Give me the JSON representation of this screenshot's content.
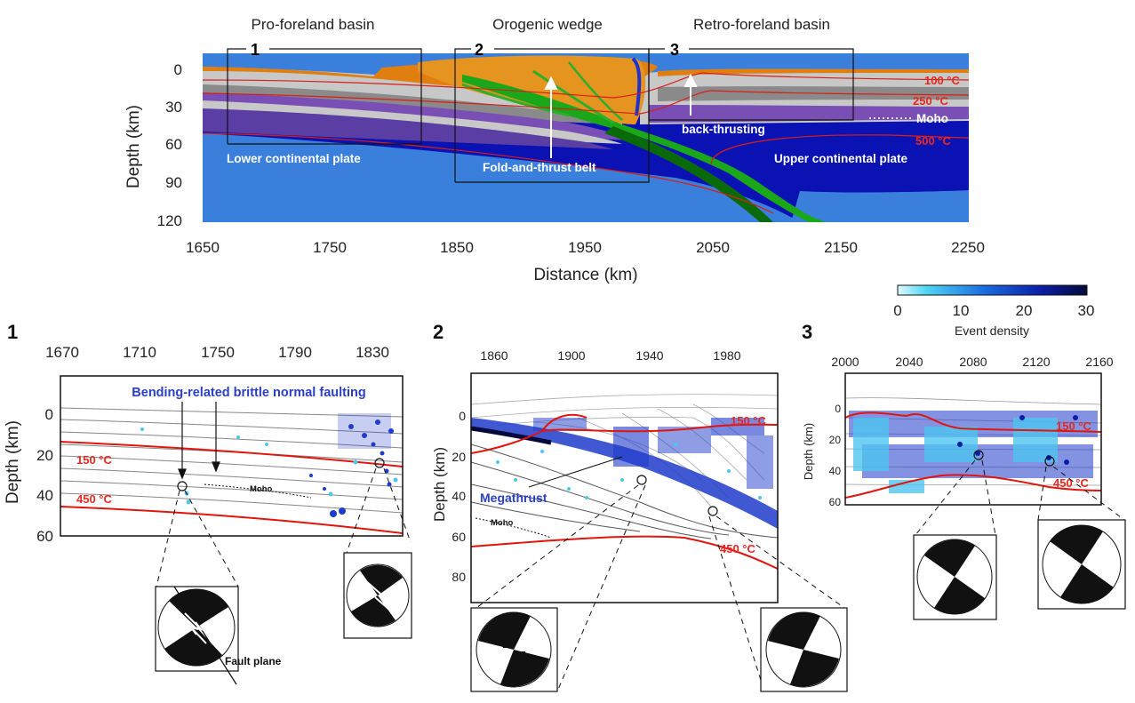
{
  "top": {
    "regions": [
      "Pro-foreland basin",
      "Orogenic wedge",
      "Retro-foreland basin"
    ],
    "box_numbers": [
      "1",
      "2",
      "3"
    ],
    "x_ticks": [
      "1650",
      "1750",
      "1850",
      "1950",
      "2050",
      "2150",
      "2250"
    ],
    "y_ticks": [
      "0",
      "30",
      "60",
      "90",
      "120"
    ],
    "x_label": "Distance (km)",
    "y_label": "Depth (km)",
    "labels": {
      "lower_plate": "Lower continental plate",
      "upper_plate": "Upper continental plate",
      "fold_thrust": "Fold-and-thrust belt",
      "back_thrust": "back-thrusting",
      "moho": "Moho"
    },
    "isotherms": [
      "100 °C",
      "250 °C",
      "500 °C"
    ]
  },
  "colorbar": {
    "ticks": [
      "0",
      "10",
      "20",
      "30"
    ],
    "label": "Event density"
  },
  "panel1": {
    "number": "1",
    "x_ticks": [
      "1670",
      "1710",
      "1750",
      "1790",
      "1830"
    ],
    "y_ticks": [
      "0",
      "20",
      "40",
      "60"
    ],
    "y_label": "Depth (km)",
    "title": "Bending-related brittle normal faulting",
    "iso_top": "150 °C",
    "iso_bottom": "450 °C",
    "moho": "Moho",
    "fault_plane": "Fault plane"
  },
  "panel2": {
    "number": "2",
    "x_ticks": [
      "1860",
      "1900",
      "1940",
      "1980"
    ],
    "y_ticks": [
      "0",
      "20",
      "40",
      "60",
      "80"
    ],
    "y_label": "Depth (km)",
    "megathrust": "Megathrust",
    "iso_top": "150 °C",
    "iso_bottom": "450 °C",
    "moho": "Moho"
  },
  "panel3": {
    "number": "3",
    "x_ticks": [
      "2000",
      "2040",
      "2080",
      "2120",
      "2160"
    ],
    "y_ticks": [
      "0",
      "20",
      "40",
      "60"
    ],
    "y_label": "Depth (km)",
    "iso_top": "150 °C",
    "iso_bottom": "450 °C"
  }
}
